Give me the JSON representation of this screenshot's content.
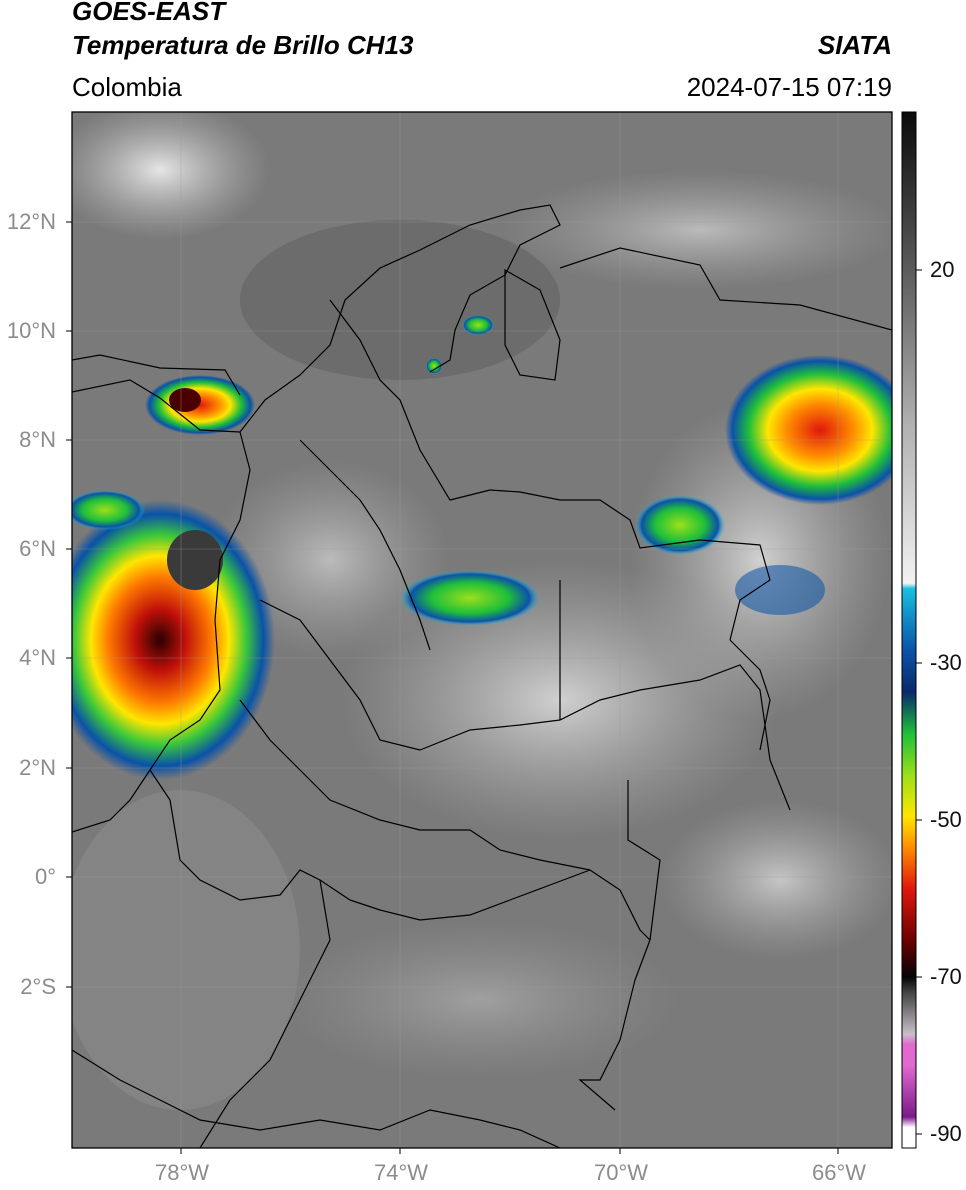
{
  "header": {
    "satellite": "GOES-EAST",
    "product": "Temperatura de Brillo CH13",
    "brand": "SIATA",
    "region": "Colombia",
    "datetime": "2024-07-15 07:19"
  },
  "axes": {
    "lat_labels": [
      "12°N",
      "10°N",
      "8°N",
      "6°N",
      "4°N",
      "2°N",
      "0°",
      "2°S"
    ],
    "lon_labels": [
      "78°W",
      "74°W",
      "70°W",
      "66°W"
    ]
  },
  "colorbar": {
    "tick_labels": [
      "20",
      "-30",
      "-50",
      "-70",
      "-90"
    ]
  },
  "colors": {
    "cloud_top_scale": [
      "#0a52a8",
      "#18c0e0",
      "#1fbf3a",
      "#9be01a",
      "#ffe600",
      "#ff8c00",
      "#e0180c",
      "#5a0000",
      "#111111"
    ],
    "cold_scale": [
      "#ffffff",
      "#e06ad0",
      "#7a1a88"
    ],
    "background_gray": "#7a7a7a"
  }
}
